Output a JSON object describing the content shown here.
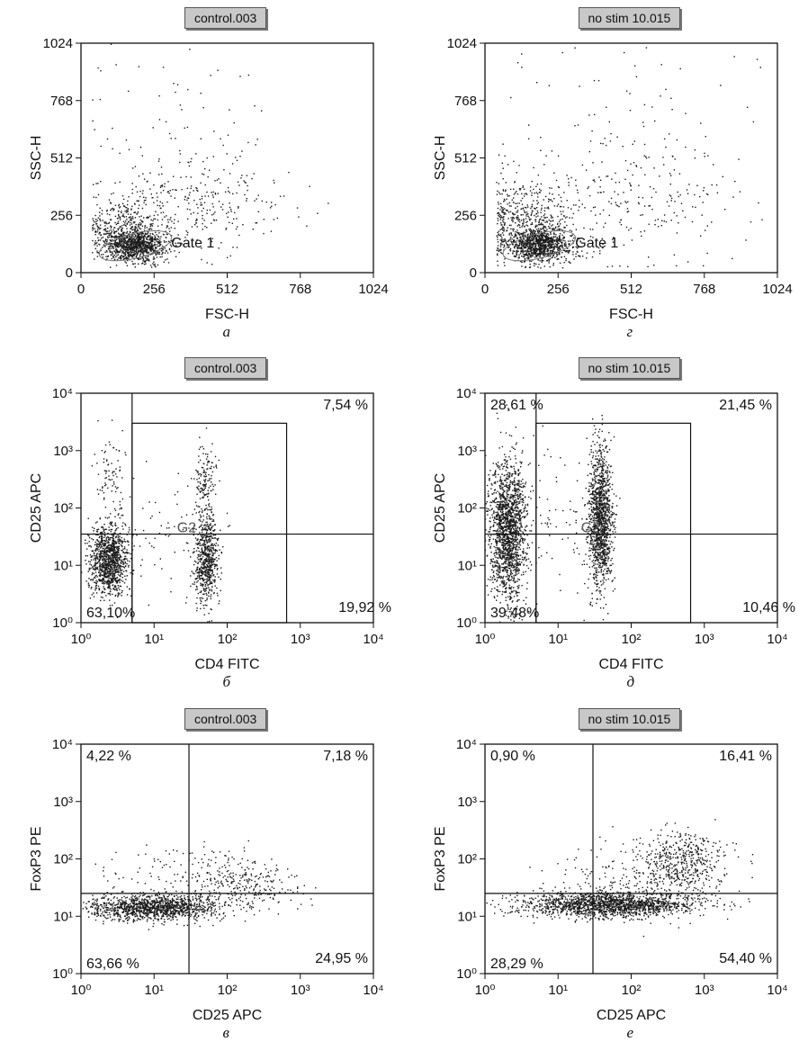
{
  "chart_data": [
    {
      "type": "scatter",
      "panel_label": "а",
      "sample_name": "control.003",
      "xlabel": "FSC-H",
      "ylabel": "SSC-H",
      "xscale": "linear",
      "yscale": "linear",
      "xlim": [
        0,
        1024
      ],
      "ylim": [
        0,
        1024
      ],
      "xticks": [
        "0",
        "256",
        "512",
        "768",
        "1024"
      ],
      "yticks": [
        "0",
        "256",
        "512",
        "768",
        "1024"
      ],
      "gate_label": "Gate 1",
      "gate_ellipse": {
        "center": [
          190,
          120
        ],
        "radius": [
          130,
          55
        ]
      },
      "quadrant_labels": [],
      "grid": false,
      "populations": [
        {
          "cx": 190,
          "cy": 120,
          "sx": 55,
          "sy": 35,
          "n": 900
        },
        {
          "cx": 150,
          "cy": 200,
          "sx": 70,
          "sy": 70,
          "n": 420
        },
        {
          "cx": 420,
          "cy": 320,
          "sx": 140,
          "sy": 120,
          "n": 300
        },
        {
          "cx": 300,
          "cy": 700,
          "sx": 220,
          "sy": 220,
          "n": 60
        }
      ]
    },
    {
      "type": "scatter",
      "panel_label": "г",
      "sample_name": "no stim 10.015",
      "xlabel": "FSC-H",
      "ylabel": "SSC-H",
      "xscale": "linear",
      "yscale": "linear",
      "xlim": [
        0,
        1024
      ],
      "ylim": [
        0,
        1024
      ],
      "xticks": [
        "0",
        "256",
        "512",
        "768",
        "1024"
      ],
      "yticks": [
        "0",
        "256",
        "512",
        "768",
        "1024"
      ],
      "gate_label": "Gate 1",
      "gate_ellipse": {
        "center": [
          190,
          120
        ],
        "radius": [
          130,
          55
        ]
      },
      "quadrant_labels": [],
      "grid": false,
      "populations": [
        {
          "cx": 190,
          "cy": 125,
          "sx": 60,
          "sy": 38,
          "n": 1000
        },
        {
          "cx": 140,
          "cy": 230,
          "sx": 80,
          "sy": 90,
          "n": 450
        },
        {
          "cx": 500,
          "cy": 330,
          "sx": 200,
          "sy": 150,
          "n": 260
        },
        {
          "cx": 500,
          "cy": 700,
          "sx": 300,
          "sy": 230,
          "n": 70
        }
      ]
    },
    {
      "type": "scatter",
      "panel_label": "б",
      "sample_name": "control.003",
      "xlabel": "CD4 FITC",
      "ylabel": "CD25 APC",
      "xscale": "log",
      "yscale": "log",
      "xlim": [
        1,
        10000
      ],
      "ylim": [
        1,
        10000
      ],
      "xticks": [
        "10⁰",
        "10¹",
        "10²",
        "10³",
        "10⁴"
      ],
      "yticks": [
        "10⁰",
        "10¹",
        "10²",
        "10³",
        "10⁴"
      ],
      "quadrant_x": 5,
      "quadrant_y": 35,
      "gate_rect": {
        "x": [
          5,
          650
        ],
        "y": [
          1,
          3000
        ]
      },
      "gate_label": "G2",
      "quadrant_labels": [
        {
          "pos": "ll",
          "text": "63,10%"
        },
        {
          "pos": "ur",
          "text": "7,54 %"
        },
        {
          "pos": "lr",
          "text": "19,92 %"
        }
      ],
      "grid": false,
      "populations": [
        {
          "lcx": 0.38,
          "lcy": 1.1,
          "slx": 0.13,
          "sly": 0.3,
          "n": 1100
        },
        {
          "lcx": 0.4,
          "lcy": 2.6,
          "slx": 0.1,
          "sly": 0.4,
          "n": 80
        },
        {
          "lcx": 1.72,
          "lcy": 1.1,
          "slx": 0.08,
          "sly": 0.4,
          "n": 650
        },
        {
          "lcx": 1.7,
          "lcy": 2.4,
          "slx": 0.07,
          "sly": 0.35,
          "n": 150
        },
        {
          "lcx": 1.1,
          "lcy": 1.5,
          "slx": 0.4,
          "sly": 0.6,
          "n": 80
        }
      ]
    },
    {
      "type": "scatter",
      "panel_label": "д",
      "sample_name": "no stim 10.015",
      "xlabel": "CD4 FITC",
      "ylabel": "CD25 APC",
      "xscale": "log",
      "yscale": "log",
      "xlim": [
        1,
        10000
      ],
      "ylim": [
        1,
        10000
      ],
      "xticks": [
        "10⁰",
        "10¹",
        "10²",
        "10³",
        "10⁴"
      ],
      "yticks": [
        "10⁰",
        "10¹",
        "10²",
        "10³",
        "10⁴"
      ],
      "quadrant_x": 5,
      "quadrant_y": 35,
      "gate_rect": {
        "x": [
          5,
          650
        ],
        "y": [
          1,
          3000
        ]
      },
      "gate_label": "G2",
      "quadrant_labels": [
        {
          "pos": "ul",
          "text": "28,61 %"
        },
        {
          "pos": "ur",
          "text": "21,45 %"
        },
        {
          "pos": "ll",
          "text": "39,48%"
        },
        {
          "pos": "lr",
          "text": "10,46 %"
        }
      ],
      "grid": false,
      "populations": [
        {
          "lcx": 0.32,
          "lcy": 1.6,
          "slx": 0.13,
          "sly": 0.65,
          "n": 1700
        },
        {
          "lcx": 1.58,
          "lcy": 1.8,
          "slx": 0.08,
          "sly": 0.6,
          "n": 1300
        },
        {
          "lcx": 1.0,
          "lcy": 1.7,
          "slx": 0.35,
          "sly": 0.7,
          "n": 90
        }
      ]
    },
    {
      "type": "scatter",
      "panel_label": "в",
      "sample_name": "control.003",
      "xlabel": "CD25 APC",
      "ylabel": "FoxP3 PE",
      "xscale": "log",
      "yscale": "log",
      "xlim": [
        1,
        10000
      ],
      "ylim": [
        1,
        10000
      ],
      "xticks": [
        "10⁰",
        "10¹",
        "10²",
        "10³",
        "10⁴"
      ],
      "yticks": [
        "10⁰",
        "10¹",
        "10²",
        "10³",
        "10⁴"
      ],
      "quadrant_x": 30,
      "quadrant_y": 25,
      "quadrant_labels": [
        {
          "pos": "ul",
          "text": "4,22 %"
        },
        {
          "pos": "ur",
          "text": "7,18 %"
        },
        {
          "pos": "ll",
          "text": "63,66 %"
        },
        {
          "pos": "lr",
          "text": "24,95 %"
        }
      ],
      "grid": false,
      "populations": [
        {
          "lcx": 1.0,
          "lcy": 1.15,
          "slx": 0.45,
          "sly": 0.11,
          "n": 1300
        },
        {
          "lcx": 2.2,
          "lcy": 1.5,
          "slx": 0.4,
          "sly": 0.22,
          "n": 250
        },
        {
          "lcx": 1.5,
          "lcy": 1.8,
          "slx": 0.6,
          "sly": 0.25,
          "n": 130
        }
      ]
    },
    {
      "type": "scatter",
      "panel_label": "е",
      "sample_name": "no stim 10.015",
      "xlabel": "CD25 APC",
      "ylabel": "FoxP3 PE",
      "xscale": "log",
      "yscale": "log",
      "xlim": [
        1,
        10000
      ],
      "ylim": [
        1,
        10000
      ],
      "xticks": [
        "10⁰",
        "10¹",
        "10²",
        "10³",
        "10⁴"
      ],
      "yticks": [
        "10⁰",
        "10¹",
        "10²",
        "10³",
        "10⁴"
      ],
      "quadrant_x": 30,
      "quadrant_y": 25,
      "quadrant_labels": [
        {
          "pos": "ul",
          "text": "0,90 %"
        },
        {
          "pos": "ur",
          "text": "16,41 %"
        },
        {
          "pos": "ll",
          "text": "28,29 %"
        },
        {
          "pos": "lr",
          "text": "54,40 %"
        }
      ],
      "grid": false,
      "populations": [
        {
          "lcx": 1.7,
          "lcy": 1.2,
          "slx": 0.6,
          "sly": 0.11,
          "n": 1700
        },
        {
          "lcx": 2.7,
          "lcy": 1.9,
          "slx": 0.3,
          "sly": 0.3,
          "n": 500
        },
        {
          "lcx": 2.0,
          "lcy": 1.7,
          "slx": 0.6,
          "sly": 0.35,
          "n": 150
        }
      ]
    }
  ]
}
